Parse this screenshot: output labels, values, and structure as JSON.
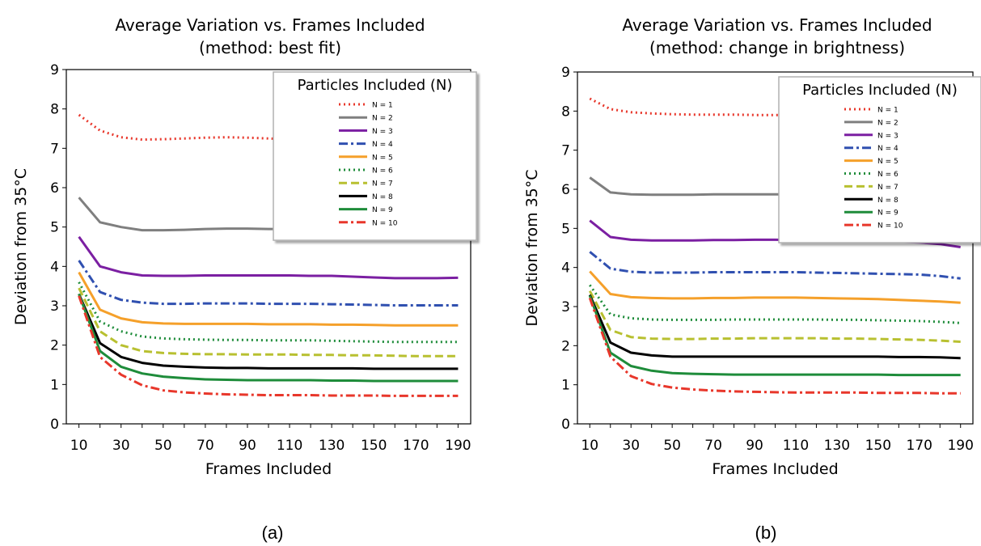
{
  "chart_data": [
    {
      "type": "line",
      "title": "Average Variation vs. Frames Included",
      "subtitle": "(method: best fit)",
      "xlabel": "Frames Included",
      "ylabel": "Deviation from 35°C",
      "xlim": [
        4,
        196
      ],
      "ylim": [
        0,
        9
      ],
      "xticks": [
        10,
        30,
        50,
        70,
        90,
        110,
        130,
        150,
        170,
        190
      ],
      "yticks": [
        0,
        1,
        2,
        3,
        4,
        5,
        6,
        7,
        8,
        9
      ],
      "grid": false,
      "legend_title": "Particles Included (N)",
      "legend_position": "upper right",
      "x": [
        10,
        20,
        30,
        40,
        50,
        60,
        70,
        80,
        90,
        100,
        110,
        120,
        130,
        140,
        150,
        160,
        170,
        180,
        190
      ],
      "series": [
        {
          "name": "N = 1",
          "color": "#e8372b",
          "dash": "dotted",
          "values": [
            7.85,
            7.45,
            7.28,
            7.22,
            7.23,
            7.25,
            7.27,
            7.28,
            7.27,
            7.25,
            7.23,
            7.22,
            7.2,
            7.18,
            7.2,
            7.21,
            7.22,
            7.21,
            7.2
          ]
        },
        {
          "name": "N = 2",
          "color": "#7f7f7f",
          "dash": "solid",
          "values": [
            5.75,
            5.12,
            5.0,
            4.92,
            4.92,
            4.93,
            4.95,
            4.96,
            4.96,
            4.95,
            4.95,
            4.94,
            4.94,
            4.93,
            4.93,
            4.92,
            4.92,
            4.92,
            4.92
          ]
        },
        {
          "name": "N = 3",
          "color": "#7b1fa2",
          "dash": "solid",
          "values": [
            4.75,
            4.0,
            3.85,
            3.77,
            3.76,
            3.76,
            3.77,
            3.77,
            3.77,
            3.77,
            3.77,
            3.76,
            3.76,
            3.74,
            3.72,
            3.7,
            3.7,
            3.7,
            3.71
          ]
        },
        {
          "name": "N = 4",
          "color": "#3050b0",
          "dash": "dashdot",
          "values": [
            4.15,
            3.35,
            3.15,
            3.08,
            3.05,
            3.05,
            3.06,
            3.06,
            3.06,
            3.05,
            3.05,
            3.05,
            3.04,
            3.03,
            3.02,
            3.01,
            3.01,
            3.01,
            3.01
          ]
        },
        {
          "name": "N = 5",
          "color": "#f5a02a",
          "dash": "solid",
          "values": [
            3.85,
            2.9,
            2.68,
            2.58,
            2.55,
            2.54,
            2.54,
            2.54,
            2.54,
            2.53,
            2.53,
            2.53,
            2.52,
            2.52,
            2.51,
            2.5,
            2.5,
            2.5,
            2.5
          ]
        },
        {
          "name": "N = 6",
          "color": "#1e8c3a",
          "dash": "dotted",
          "values": [
            3.6,
            2.6,
            2.35,
            2.22,
            2.17,
            2.15,
            2.14,
            2.13,
            2.13,
            2.12,
            2.12,
            2.12,
            2.11,
            2.1,
            2.09,
            2.08,
            2.08,
            2.08,
            2.08
          ]
        },
        {
          "name": "N = 7",
          "color": "#b8c030",
          "dash": "dashed",
          "values": [
            3.45,
            2.35,
            2.0,
            1.85,
            1.8,
            1.78,
            1.77,
            1.77,
            1.76,
            1.76,
            1.76,
            1.75,
            1.75,
            1.74,
            1.74,
            1.73,
            1.72,
            1.72,
            1.72
          ]
        },
        {
          "name": "N = 8",
          "color": "#000000",
          "dash": "solid",
          "values": [
            3.3,
            2.05,
            1.7,
            1.55,
            1.48,
            1.45,
            1.43,
            1.42,
            1.42,
            1.41,
            1.41,
            1.41,
            1.41,
            1.41,
            1.4,
            1.4,
            1.4,
            1.4,
            1.4
          ]
        },
        {
          "name": "N = 9",
          "color": "#1e8c3a",
          "dash": "solid",
          "values": [
            3.3,
            1.85,
            1.45,
            1.28,
            1.2,
            1.16,
            1.13,
            1.12,
            1.11,
            1.11,
            1.11,
            1.11,
            1.1,
            1.1,
            1.09,
            1.09,
            1.09,
            1.09,
            1.09
          ]
        },
        {
          "name": "N = 10",
          "color": "#e8372b",
          "dash": "dashdot",
          "values": [
            3.25,
            1.7,
            1.25,
            0.98,
            0.85,
            0.8,
            0.77,
            0.75,
            0.74,
            0.73,
            0.73,
            0.73,
            0.72,
            0.72,
            0.72,
            0.71,
            0.71,
            0.71,
            0.71
          ]
        }
      ]
    },
    {
      "type": "line",
      "title": "Average Variation vs. Frames Included",
      "subtitle": "(method: change in brightness)",
      "xlabel": "Frames Included",
      "ylabel": "Deviation from 35°C",
      "xlim": [
        4,
        196
      ],
      "ylim": [
        0,
        9
      ],
      "xticks": [
        10,
        30,
        50,
        70,
        90,
        110,
        130,
        150,
        170,
        190
      ],
      "yticks": [
        0,
        1,
        2,
        3,
        4,
        5,
        6,
        7,
        8,
        9
      ],
      "grid": false,
      "legend_title": "Particles Included (N)",
      "legend_position": "upper right",
      "x": [
        10,
        20,
        30,
        40,
        50,
        60,
        70,
        80,
        90,
        100,
        110,
        120,
        130,
        140,
        150,
        160,
        170,
        180,
        190
      ],
      "series": [
        {
          "name": "N = 1",
          "color": "#e8372b",
          "dash": "dotted",
          "values": [
            8.32,
            8.05,
            7.97,
            7.94,
            7.92,
            7.91,
            7.91,
            7.91,
            7.9,
            7.9,
            7.9,
            7.89,
            7.89,
            7.89,
            7.89,
            7.88,
            7.88,
            7.88,
            7.88
          ]
        },
        {
          "name": "N = 2",
          "color": "#7f7f7f",
          "dash": "solid",
          "values": [
            6.3,
            5.92,
            5.87,
            5.86,
            5.86,
            5.86,
            5.87,
            5.87,
            5.87,
            5.87,
            5.87,
            5.87,
            5.87,
            5.86,
            5.86,
            5.86,
            5.86,
            5.86,
            5.86
          ]
        },
        {
          "name": "N = 3",
          "color": "#7b1fa2",
          "dash": "solid",
          "values": [
            5.2,
            4.78,
            4.71,
            4.69,
            4.69,
            4.69,
            4.7,
            4.7,
            4.71,
            4.71,
            4.7,
            4.7,
            4.69,
            4.69,
            4.68,
            4.66,
            4.64,
            4.6,
            4.52
          ]
        },
        {
          "name": "N = 4",
          "color": "#3050b0",
          "dash": "dashdot",
          "values": [
            4.4,
            3.97,
            3.89,
            3.87,
            3.87,
            3.87,
            3.88,
            3.88,
            3.88,
            3.88,
            3.88,
            3.87,
            3.86,
            3.85,
            3.84,
            3.83,
            3.82,
            3.78,
            3.72
          ]
        },
        {
          "name": "N = 5",
          "color": "#f5a02a",
          "dash": "solid",
          "values": [
            3.9,
            3.32,
            3.24,
            3.22,
            3.21,
            3.21,
            3.22,
            3.22,
            3.23,
            3.23,
            3.23,
            3.22,
            3.21,
            3.2,
            3.19,
            3.17,
            3.15,
            3.13,
            3.1
          ]
        },
        {
          "name": "N = 6",
          "color": "#1e8c3a",
          "dash": "dotted",
          "values": [
            3.55,
            2.8,
            2.7,
            2.67,
            2.66,
            2.66,
            2.66,
            2.67,
            2.67,
            2.67,
            2.67,
            2.67,
            2.66,
            2.66,
            2.65,
            2.64,
            2.63,
            2.61,
            2.58
          ]
        },
        {
          "name": "N = 7",
          "color": "#b8c030",
          "dash": "dashed",
          "values": [
            3.4,
            2.4,
            2.22,
            2.18,
            2.17,
            2.17,
            2.18,
            2.18,
            2.19,
            2.19,
            2.19,
            2.19,
            2.18,
            2.18,
            2.17,
            2.16,
            2.15,
            2.13,
            2.1
          ]
        },
        {
          "name": "N = 8",
          "color": "#000000",
          "dash": "solid",
          "values": [
            3.3,
            2.08,
            1.82,
            1.75,
            1.72,
            1.72,
            1.72,
            1.72,
            1.72,
            1.72,
            1.72,
            1.72,
            1.72,
            1.72,
            1.72,
            1.71,
            1.71,
            1.7,
            1.68
          ]
        },
        {
          "name": "N = 9",
          "color": "#1e8c3a",
          "dash": "solid",
          "values": [
            3.28,
            1.82,
            1.48,
            1.36,
            1.3,
            1.28,
            1.27,
            1.26,
            1.26,
            1.26,
            1.26,
            1.26,
            1.26,
            1.26,
            1.26,
            1.25,
            1.25,
            1.25,
            1.25
          ]
        },
        {
          "name": "N = 10",
          "color": "#e8372b",
          "dash": "dashdot",
          "values": [
            3.22,
            1.72,
            1.22,
            1.02,
            0.93,
            0.88,
            0.85,
            0.83,
            0.82,
            0.81,
            0.8,
            0.8,
            0.8,
            0.8,
            0.79,
            0.79,
            0.79,
            0.78,
            0.78
          ]
        }
      ]
    }
  ],
  "captions": [
    "(a)",
    "(b)"
  ]
}
